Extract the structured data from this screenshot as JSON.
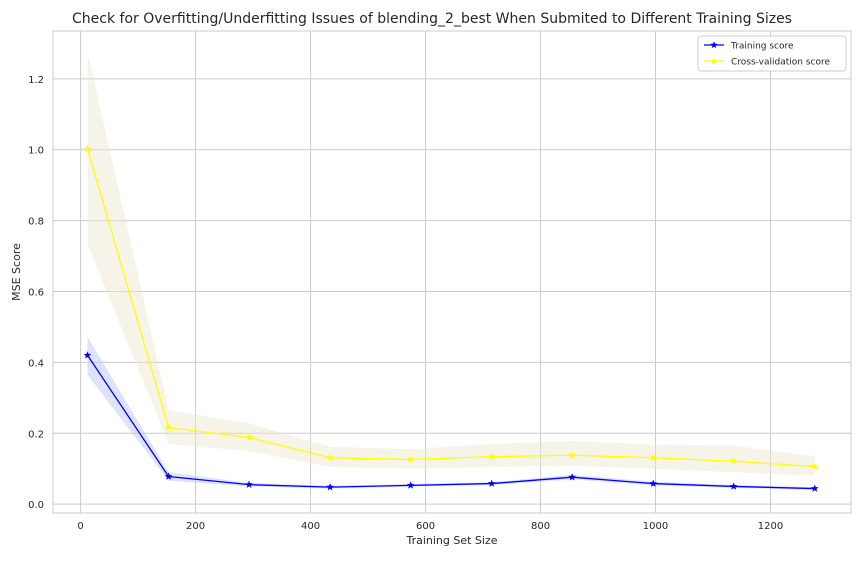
{
  "chart_data": {
    "type": "line",
    "title": "Check for Overfitting/Underfitting Issues of blending_2_best When Submited to Different Training Sizes",
    "xlabel": "Training Set Size",
    "ylabel": "MSE Score",
    "xlim": [
      -48,
      1340
    ],
    "ylim": [
      -0.025,
      1.335
    ],
    "xticks": [
      0,
      200,
      400,
      600,
      800,
      1000,
      1200
    ],
    "yticks": [
      0.0,
      0.2,
      0.4,
      0.6,
      0.8,
      1.0,
      1.2
    ],
    "grid": true,
    "legend_position": "upper right",
    "x": [
      12,
      153,
      293,
      434,
      574,
      715,
      855,
      996,
      1136,
      1277
    ],
    "series": [
      {
        "name": "Training score",
        "color": "#0000ff",
        "band_color": "#b5c2f5",
        "marker": "star",
        "values": [
          0.42,
          0.078,
          0.055,
          0.048,
          0.053,
          0.058,
          0.076,
          0.058,
          0.05,
          0.044
        ],
        "lower": [
          0.365,
          0.066,
          0.05,
          0.044,
          0.049,
          0.054,
          0.07,
          0.053,
          0.046,
          0.04
        ],
        "upper": [
          0.472,
          0.09,
          0.06,
          0.052,
          0.057,
          0.062,
          0.083,
          0.063,
          0.054,
          0.048
        ]
      },
      {
        "name": "Cross-validation score",
        "color": "#ffff00",
        "band_color": "#ece4cc",
        "marker": "star",
        "values": [
          1.003,
          0.216,
          0.188,
          0.131,
          0.126,
          0.134,
          0.138,
          0.131,
          0.121,
          0.106
        ],
        "lower": [
          0.735,
          0.17,
          0.15,
          0.105,
          0.1,
          0.105,
          0.108,
          0.1,
          0.09,
          0.08
        ],
        "upper": [
          1.275,
          0.265,
          0.228,
          0.162,
          0.155,
          0.17,
          0.178,
          0.168,
          0.165,
          0.135
        ]
      }
    ]
  }
}
